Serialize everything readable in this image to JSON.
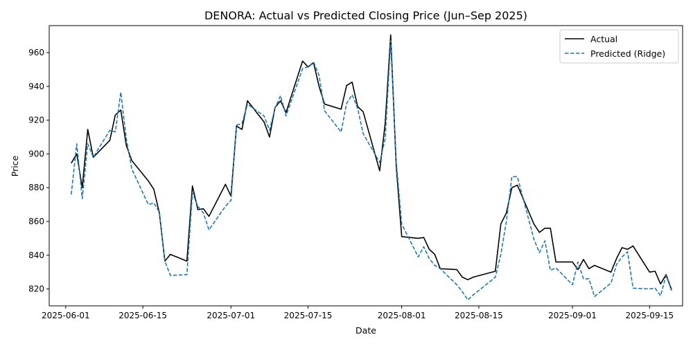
{
  "chart_data": {
    "type": "line",
    "title": "DENORA: Actual vs Predicted Closing Price (Jun–Sep 2025)",
    "xlabel": "Date",
    "ylabel": "Price",
    "x_tick_labels": [
      "2025-06-01",
      "2025-06-15",
      "2025-07-01",
      "2025-07-15",
      "2025-08-01",
      "2025-08-15",
      "2025-09-01",
      "2025-09-15"
    ],
    "y_ticks": [
      820,
      840,
      860,
      880,
      900,
      920,
      940,
      960
    ],
    "ylim": [
      810,
      976
    ],
    "xlim": [
      "2025-05-29",
      "2025-09-21"
    ],
    "grid": false,
    "legend_position": "top-right",
    "series": [
      {
        "name": "Actual",
        "color": "#000000",
        "dash": "solid",
        "points": [
          [
            "2025-06-02",
            894.5
          ],
          [
            "2025-06-03",
            900.0
          ],
          [
            "2025-06-04",
            880.0
          ],
          [
            "2025-06-05",
            914.5
          ],
          [
            "2025-06-06",
            898.0
          ],
          [
            "2025-06-09",
            908.0
          ],
          [
            "2025-06-10",
            923.0
          ],
          [
            "2025-06-11",
            926.0
          ],
          [
            "2025-06-12",
            905.0
          ],
          [
            "2025-06-13",
            896.0
          ],
          [
            "2025-06-16",
            884.0
          ],
          [
            "2025-06-17",
            879.0
          ],
          [
            "2025-06-18",
            865.0
          ],
          [
            "2025-06-19",
            836.5
          ],
          [
            "2025-06-20",
            840.5
          ],
          [
            "2025-06-23",
            836.5
          ],
          [
            "2025-06-24",
            881.0
          ],
          [
            "2025-06-25",
            867.0
          ],
          [
            "2025-06-26",
            867.5
          ],
          [
            "2025-06-27",
            863.0
          ],
          [
            "2025-06-30",
            882.0
          ],
          [
            "2025-07-01",
            875.0
          ],
          [
            "2025-07-02",
            916.5
          ],
          [
            "2025-07-03",
            914.5
          ],
          [
            "2025-07-04",
            931.5
          ],
          [
            "2025-07-07",
            919.0
          ],
          [
            "2025-07-08",
            910.0
          ],
          [
            "2025-07-09",
            927.5
          ],
          [
            "2025-07-10",
            931.5
          ],
          [
            "2025-07-11",
            924.5
          ],
          [
            "2025-07-14",
            955.0
          ],
          [
            "2025-07-15",
            951.5
          ],
          [
            "2025-07-16",
            954.0
          ],
          [
            "2025-07-17",
            940.0
          ],
          [
            "2025-07-18",
            929.5
          ],
          [
            "2025-07-21",
            926.5
          ],
          [
            "2025-07-22",
            940.5
          ],
          [
            "2025-07-23",
            942.5
          ],
          [
            "2025-07-24",
            928.0
          ],
          [
            "2025-07-25",
            925.0
          ],
          [
            "2025-07-28",
            890.0
          ],
          [
            "2025-07-29",
            918.0
          ],
          [
            "2025-07-30",
            970.5
          ],
          [
            "2025-07-31",
            893.0
          ],
          [
            "2025-08-01",
            851.0
          ],
          [
            "2025-08-04",
            850.0
          ],
          [
            "2025-08-05",
            850.5
          ],
          [
            "2025-08-06",
            843.5
          ],
          [
            "2025-08-07",
            840.5
          ],
          [
            "2025-08-08",
            832.0
          ],
          [
            "2025-08-11",
            831.5
          ],
          [
            "2025-08-12",
            827.0
          ],
          [
            "2025-08-13",
            825.5
          ],
          [
            "2025-08-14",
            827.0
          ],
          [
            "2025-08-18",
            830.5
          ],
          [
            "2025-08-19",
            858.5
          ],
          [
            "2025-08-20",
            865.0
          ],
          [
            "2025-08-21",
            880.0
          ],
          [
            "2025-08-22",
            881.5
          ],
          [
            "2025-08-25",
            858.5
          ],
          [
            "2025-08-26",
            853.5
          ],
          [
            "2025-08-27",
            856.0
          ],
          [
            "2025-08-28",
            856.0
          ],
          [
            "2025-08-29",
            836.0
          ],
          [
            "2025-09-01",
            836.0
          ],
          [
            "2025-09-02",
            831.5
          ],
          [
            "2025-09-03",
            837.5
          ],
          [
            "2025-09-04",
            832.0
          ],
          [
            "2025-09-05",
            834.0
          ],
          [
            "2025-09-08",
            830.0
          ],
          [
            "2025-09-09",
            838.0
          ],
          [
            "2025-09-10",
            844.5
          ],
          [
            "2025-09-11",
            843.5
          ],
          [
            "2025-09-12",
            845.5
          ],
          [
            "2025-09-15",
            830.0
          ],
          [
            "2025-09-16",
            830.5
          ],
          [
            "2025-09-17",
            823.0
          ],
          [
            "2025-09-18",
            828.5
          ],
          [
            "2025-09-19",
            819.5
          ]
        ]
      },
      {
        "name": "Predicted (Ridge)",
        "color": "#1f77b4",
        "dash": "dashed",
        "points": [
          [
            "2025-06-02",
            876.0
          ],
          [
            "2025-06-03",
            906.0
          ],
          [
            "2025-06-04",
            873.5
          ],
          [
            "2025-06-05",
            906.0
          ],
          [
            "2025-06-06",
            898.0
          ],
          [
            "2025-06-09",
            914.0
          ],
          [
            "2025-06-10",
            913.0
          ],
          [
            "2025-06-11",
            936.5
          ],
          [
            "2025-06-12",
            909.0
          ],
          [
            "2025-06-13",
            891.0
          ],
          [
            "2025-06-16",
            870.0
          ],
          [
            "2025-06-17",
            871.0
          ],
          [
            "2025-06-18",
            865.5
          ],
          [
            "2025-06-19",
            836.5
          ],
          [
            "2025-06-20",
            828.0
          ],
          [
            "2025-06-23",
            828.5
          ],
          [
            "2025-06-24",
            877.0
          ],
          [
            "2025-06-25",
            869.0
          ],
          [
            "2025-06-26",
            865.0
          ],
          [
            "2025-06-27",
            855.0
          ],
          [
            "2025-06-30",
            869.0
          ],
          [
            "2025-07-01",
            872.5
          ],
          [
            "2025-07-02",
            917.0
          ],
          [
            "2025-07-03",
            918.0
          ],
          [
            "2025-07-04",
            929.5
          ],
          [
            "2025-07-07",
            922.5
          ],
          [
            "2025-07-08",
            914.0
          ],
          [
            "2025-07-09",
            927.0
          ],
          [
            "2025-07-10",
            934.5
          ],
          [
            "2025-07-11",
            922.5
          ],
          [
            "2025-07-14",
            950.5
          ],
          [
            "2025-07-15",
            951.5
          ],
          [
            "2025-07-16",
            954.5
          ],
          [
            "2025-07-17",
            946.5
          ],
          [
            "2025-07-18",
            925.5
          ],
          [
            "2025-07-21",
            913.0
          ],
          [
            "2025-07-22",
            930.0
          ],
          [
            "2025-07-23",
            935.0
          ],
          [
            "2025-07-24",
            927.0
          ],
          [
            "2025-07-25",
            912.0
          ],
          [
            "2025-07-28",
            895.0
          ],
          [
            "2025-07-29",
            909.0
          ],
          [
            "2025-07-30",
            967.0
          ],
          [
            "2025-07-31",
            895.5
          ],
          [
            "2025-08-01",
            858.5
          ],
          [
            "2025-08-04",
            839.0
          ],
          [
            "2025-08-05",
            845.0
          ],
          [
            "2025-08-06",
            838.0
          ],
          [
            "2025-08-07",
            834.0
          ],
          [
            "2025-08-08",
            832.0
          ],
          [
            "2025-08-11",
            822.5
          ],
          [
            "2025-08-12",
            818.5
          ],
          [
            "2025-08-13",
            813.5
          ],
          [
            "2025-08-14",
            816.5
          ],
          [
            "2025-08-18",
            827.0
          ],
          [
            "2025-08-19",
            840.5
          ],
          [
            "2025-08-20",
            860.0
          ],
          [
            "2025-08-21",
            886.5
          ],
          [
            "2025-08-22",
            886.5
          ],
          [
            "2025-08-25",
            849.5
          ],
          [
            "2025-08-26",
            841.5
          ],
          [
            "2025-08-27",
            848.5
          ],
          [
            "2025-08-28",
            831.0
          ],
          [
            "2025-08-29",
            832.5
          ],
          [
            "2025-09-01",
            822.5
          ],
          [
            "2025-09-02",
            836.0
          ],
          [
            "2025-09-03",
            826.0
          ],
          [
            "2025-09-04",
            826.0
          ],
          [
            "2025-09-05",
            815.5
          ],
          [
            "2025-09-08",
            823.5
          ],
          [
            "2025-09-09",
            834.5
          ],
          [
            "2025-09-10",
            839.0
          ],
          [
            "2025-09-11",
            842.0
          ],
          [
            "2025-09-12",
            820.5
          ],
          [
            "2025-09-15",
            820.0
          ],
          [
            "2025-09-16",
            820.5
          ],
          [
            "2025-09-17",
            816.0
          ],
          [
            "2025-09-18",
            828.0
          ],
          [
            "2025-09-19",
            819.0
          ]
        ]
      }
    ]
  }
}
